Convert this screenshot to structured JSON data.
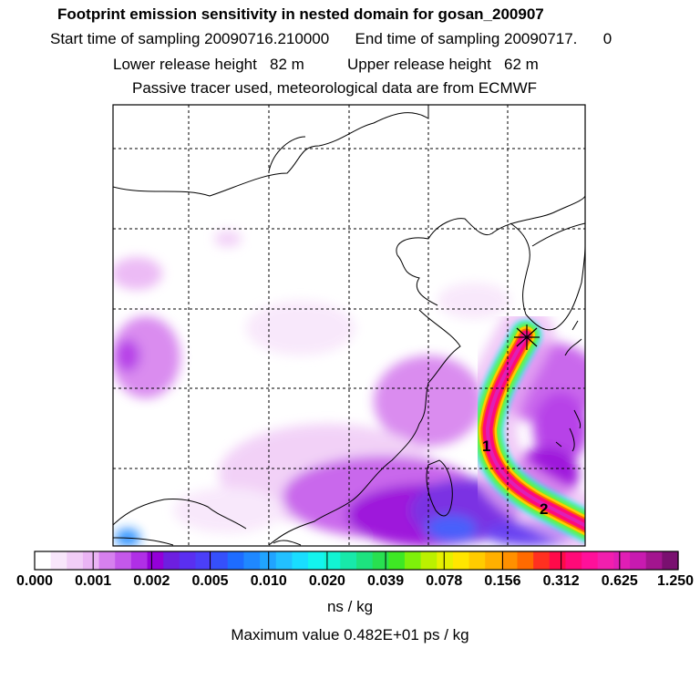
{
  "header": {
    "title": "Footprint emission sensitivity in nested domain for gosan_200907",
    "sampling": "Start time of sampling 20090716.210000      End time of sampling 20090717.      0",
    "release": "Lower release height   82 m          Upper release height   62 m",
    "tracer": "Passive tracer used, meteorological data are from ECMWF"
  },
  "colorbar": {
    "ticks": [
      "0.000",
      "0.001",
      "0.002",
      "0.005",
      "0.010",
      "0.020",
      "0.039",
      "0.078",
      "0.156",
      "0.312",
      "0.625",
      "1.250"
    ],
    "colors": [
      "#ffffff",
      "#f8e6fb",
      "#f1cdf7",
      "#eab4f4",
      "#d680ee",
      "#c458ea",
      "#b02fe6",
      "#9400d8",
      "#6d1fe0",
      "#5a2ff0",
      "#4b3ff8",
      "#3550fb",
      "#1e6cff",
      "#1f88ff",
      "#20a4ff",
      "#22c0ff",
      "#19ddff",
      "#13f4ee",
      "#12f4d3",
      "#17e9aa",
      "#1de27f",
      "#28e050",
      "#3ee824",
      "#7ef00a",
      "#bbf000",
      "#e6f000",
      "#ffe600",
      "#ffcc00",
      "#ffb000",
      "#ff9000",
      "#ff6a00",
      "#ff3020",
      "#ff0a4a",
      "#ff0a78",
      "#ff109a",
      "#f21fae",
      "#e01eb5",
      "#c81ab0",
      "#a3158f",
      "#7a1070"
    ],
    "unit": "ns / kg"
  },
  "max_value": "Maximum value  0.482E+01 ps / kg",
  "map": {
    "trajectory_labels": [
      "1",
      "2"
    ],
    "colors": {
      "frame": "#000000",
      "coast": "#000000",
      "plume_core": "#ff0a78",
      "plume_edge": "#13f4ee",
      "sensitivity_low": "#eab4f4",
      "sensitivity_mid": "#9400d8",
      "sensitivity_high": "#3550fb"
    }
  }
}
